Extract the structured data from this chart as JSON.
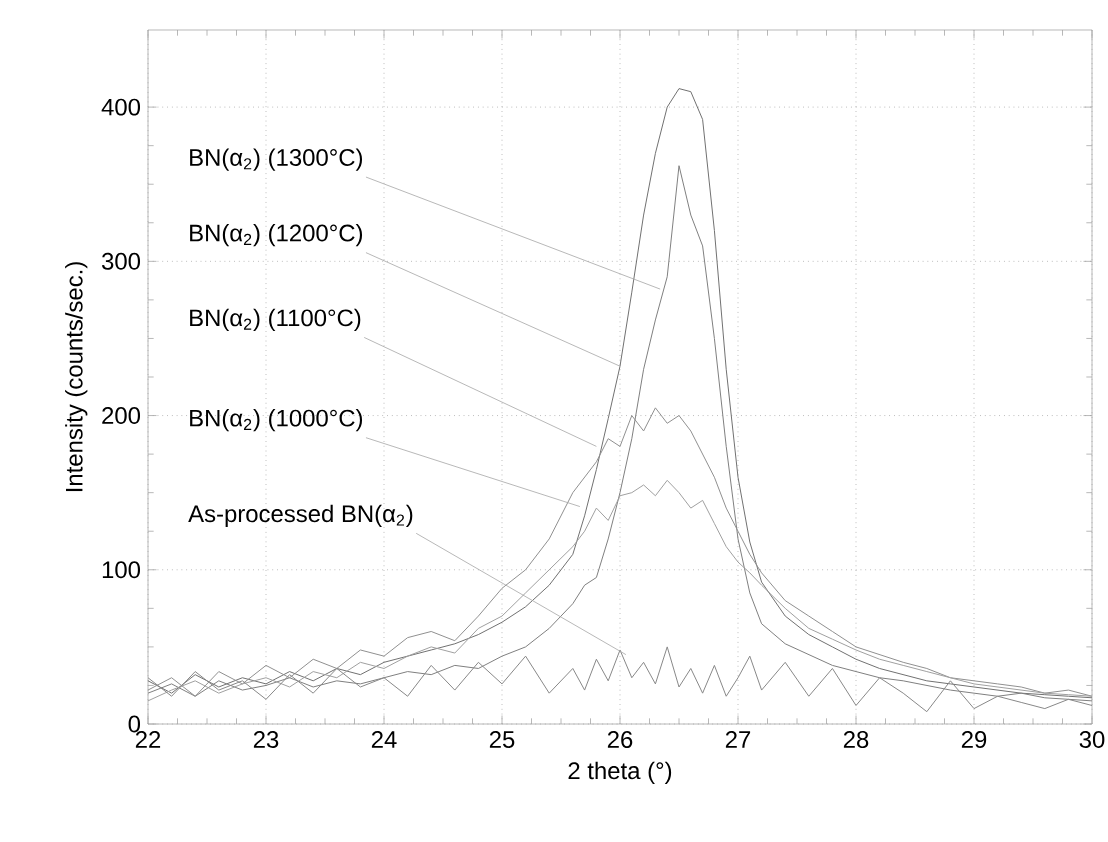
{
  "chart_data": {
    "type": "line",
    "xlabel": "2 theta (°)",
    "ylabel": "Intensity (counts/sec.)",
    "x": [
      22,
      22.2,
      22.4,
      22.6,
      22.8,
      23,
      23.2,
      23.4,
      23.6,
      23.8,
      24,
      24.2,
      24.4,
      24.6,
      24.8,
      25,
      25.2,
      25.4,
      25.6,
      25.7,
      25.8,
      25.9,
      26,
      26.1,
      26.2,
      26.3,
      26.4,
      26.5,
      26.6,
      26.7,
      26.8,
      26.9,
      27,
      27.1,
      27.2,
      27.4,
      27.6,
      27.8,
      28,
      28.2,
      28.4,
      28.6,
      28.8,
      29,
      29.2,
      29.4,
      29.6,
      29.8,
      30
    ],
    "series": [
      {
        "color": "#707070",
        "values": [
          28,
          20,
          32,
          24,
          30,
          26,
          34,
          28,
          36,
          32,
          40,
          44,
          48,
          52,
          58,
          66,
          76,
          90,
          110,
          135,
          165,
          198,
          232,
          280,
          330,
          370,
          400,
          412,
          410,
          392,
          320,
          230,
          160,
          118,
          92,
          70,
          58,
          50,
          42,
          36,
          32,
          28,
          26,
          24,
          22,
          20,
          19,
          18,
          17
        ]
      },
      {
        "color": "#808080",
        "values": [
          20,
          26,
          18,
          28,
          22,
          25,
          30,
          24,
          28,
          26,
          30,
          34,
          32,
          38,
          36,
          44,
          50,
          62,
          78,
          90,
          95,
          120,
          150,
          185,
          230,
          262,
          290,
          362,
          330,
          310,
          250,
          180,
          120,
          85,
          65,
          52,
          45,
          38,
          34,
          30,
          28,
          25,
          22,
          20,
          18,
          20,
          17,
          16,
          15
        ]
      },
      {
        "color": "#909090",
        "values": [
          22,
          30,
          18,
          34,
          26,
          38,
          30,
          42,
          36,
          48,
          44,
          56,
          60,
          54,
          70,
          88,
          100,
          120,
          150,
          160,
          170,
          185,
          180,
          200,
          190,
          205,
          195,
          200,
          190,
          175,
          160,
          140,
          125,
          110,
          98,
          80,
          70,
          60,
          50,
          45,
          40,
          36,
          30,
          28,
          26,
          24,
          20,
          22,
          18
        ]
      },
      {
        "color": "#a0a0a0",
        "values": [
          15,
          22,
          28,
          20,
          26,
          30,
          24,
          34,
          30,
          40,
          36,
          44,
          50,
          46,
          62,
          70,
          85,
          100,
          115,
          125,
          140,
          132,
          148,
          150,
          155,
          148,
          158,
          150,
          140,
          145,
          130,
          115,
          105,
          98,
          90,
          75,
          62,
          55,
          48,
          42,
          38,
          34,
          30,
          26,
          24,
          22,
          20,
          19,
          18
        ]
      },
      {
        "color": "#888888",
        "values": [
          30,
          18,
          34,
          22,
          28,
          16,
          32,
          20,
          36,
          24,
          30,
          18,
          38,
          22,
          40,
          26,
          44,
          20,
          36,
          22,
          42,
          28,
          48,
          30,
          40,
          26,
          50,
          24,
          36,
          20,
          38,
          18,
          30,
          44,
          22,
          40,
          18,
          36,
          12,
          30,
          20,
          8,
          28,
          10,
          18,
          14,
          10,
          16,
          12
        ]
      }
    ],
    "xlim": [
      22,
      30
    ],
    "ylim": [
      0,
      450
    ],
    "xticks": [
      22,
      23,
      24,
      25,
      26,
      27,
      28,
      29,
      30
    ],
    "yticks": [
      0,
      100,
      200,
      300,
      400
    ],
    "grid": true,
    "annotations": [
      {
        "text": "BN(α$_{2}$) (1300°C)",
        "x": 26.34,
        "y": 282
      },
      {
        "text": "BN(α$_{2}$) (1200°C)",
        "x": 26.0,
        "y": 232
      },
      {
        "text": "BN(α$_{2}$) (1100°C)",
        "x": 25.8,
        "y": 180
      },
      {
        "text": "BN(α$_{2}$) (1000°C)",
        "x": 25.66,
        "y": 141
      },
      {
        "text": "As-processed BN(α$_{2}$)",
        "x": 26.05,
        "y": 45
      }
    ]
  }
}
